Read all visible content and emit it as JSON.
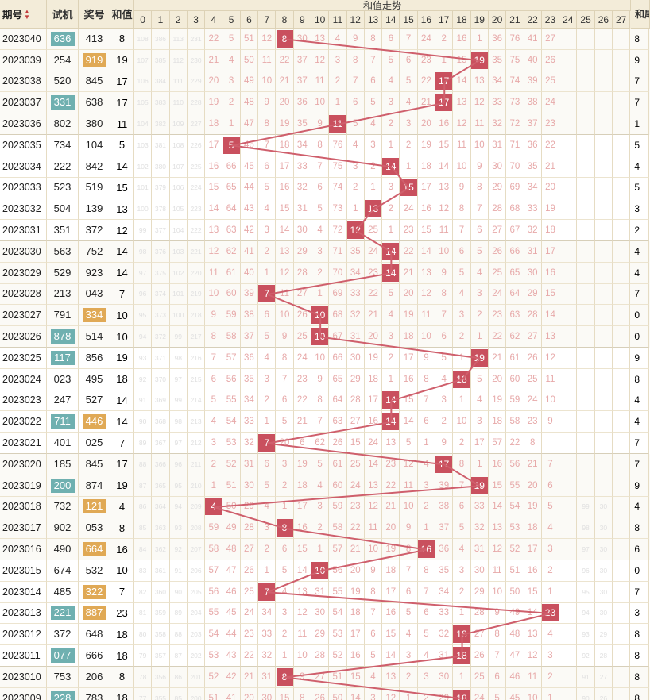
{
  "header": {
    "period": "期号",
    "trial": "试机",
    "prize": "奖号",
    "sum": "和值",
    "trend": "和值走势",
    "tail": "和尾",
    "numbers": [
      "0",
      "1",
      "2",
      "3",
      "4",
      "5",
      "6",
      "7",
      "8",
      "9",
      "10",
      "11",
      "12",
      "13",
      "14",
      "15",
      "16",
      "17",
      "18",
      "19",
      "20",
      "21",
      "22",
      "23",
      "24",
      "25",
      "26",
      "27"
    ]
  },
  "colors": {
    "hit": "#c9505e",
    "line": "#cf5f6c",
    "teal": "#6fb0b0",
    "amber": "#e0a955",
    "header_bg": "#f3ecd9"
  },
  "rows": [
    {
      "period": "2023040",
      "trial": "636",
      "trial_style": "teal",
      "prize": "413",
      "prize_style": "",
      "sum": "8",
      "tail": "8",
      "miss": [
        "108",
        "386",
        "113",
        "231",
        "22",
        "5",
        "51",
        "12",
        "",
        "30",
        "13",
        "4",
        "9",
        "8",
        "6",
        "7",
        "24",
        "2",
        "16",
        "1",
        "36",
        "76",
        "41",
        "27",
        "",
        "",
        "",
        ""
      ]
    },
    {
      "period": "2023039",
      "trial": "254",
      "trial_style": "",
      "prize": "919",
      "prize_style": "amber",
      "sum": "19",
      "tail": "9",
      "miss": [
        "107",
        "385",
        "112",
        "230",
        "21",
        "4",
        "50",
        "11",
        "22",
        "37",
        "12",
        "3",
        "8",
        "7",
        "5",
        "6",
        "23",
        "1",
        "15",
        "",
        "35",
        "75",
        "40",
        "26",
        "",
        "",
        "",
        ""
      ]
    },
    {
      "period": "2023038",
      "trial": "520",
      "trial_style": "",
      "prize": "845",
      "prize_style": "",
      "sum": "17",
      "tail": "7",
      "miss": [
        "106",
        "384",
        "111",
        "229",
        "20",
        "3",
        "49",
        "10",
        "21",
        "37",
        "11",
        "2",
        "7",
        "6",
        "4",
        "5",
        "22",
        "",
        "14",
        "13",
        "34",
        "74",
        "39",
        "25",
        "",
        "",
        "",
        ""
      ]
    },
    {
      "period": "2023037",
      "trial": "331",
      "trial_style": "teal",
      "prize": "638",
      "prize_style": "",
      "sum": "17",
      "tail": "7",
      "miss": [
        "105",
        "383",
        "110",
        "228",
        "19",
        "2",
        "48",
        "9",
        "20",
        "36",
        "10",
        "1",
        "6",
        "5",
        "3",
        "4",
        "21",
        "",
        "13",
        "12",
        "33",
        "73",
        "38",
        "24",
        "",
        "",
        "",
        ""
      ]
    },
    {
      "period": "2023036",
      "trial": "802",
      "trial_style": "",
      "prize": "380",
      "prize_style": "",
      "sum": "11",
      "tail": "1",
      "miss": [
        "104",
        "382",
        "109",
        "227",
        "18",
        "1",
        "47",
        "8",
        "19",
        "35",
        "9",
        "",
        "5",
        "4",
        "2",
        "3",
        "20",
        "16",
        "12",
        "11",
        "32",
        "72",
        "37",
        "23",
        "",
        "",
        "",
        ""
      ]
    },
    {
      "period": "2023035",
      "trial": "734",
      "trial_style": "",
      "prize": "104",
      "prize_style": "",
      "sum": "5",
      "tail": "5",
      "miss": [
        "103",
        "381",
        "108",
        "226",
        "17",
        "",
        "46",
        "7",
        "18",
        "34",
        "8",
        "76",
        "4",
        "3",
        "1",
        "2",
        "19",
        "15",
        "11",
        "10",
        "31",
        "71",
        "36",
        "22",
        "",
        "",
        "",
        ""
      ]
    },
    {
      "period": "2023034",
      "trial": "222",
      "trial_style": "",
      "prize": "842",
      "prize_style": "",
      "sum": "14",
      "tail": "4",
      "miss": [
        "102",
        "380",
        "107",
        "225",
        "16",
        "66",
        "45",
        "6",
        "17",
        "33",
        "7",
        "75",
        "3",
        "2",
        "",
        "1",
        "18",
        "14",
        "10",
        "9",
        "30",
        "70",
        "35",
        "21",
        "",
        "",
        "",
        ""
      ]
    },
    {
      "period": "2023033",
      "trial": "523",
      "trial_style": "",
      "prize": "519",
      "prize_style": "",
      "sum": "15",
      "tail": "5",
      "miss": [
        "101",
        "379",
        "106",
        "224",
        "15",
        "65",
        "44",
        "5",
        "16",
        "32",
        "6",
        "74",
        "2",
        "1",
        "3",
        "",
        "17",
        "13",
        "9",
        "8",
        "29",
        "69",
        "34",
        "20",
        "",
        "",
        "",
        ""
      ]
    },
    {
      "period": "2023032",
      "trial": "504",
      "trial_style": "",
      "prize": "139",
      "prize_style": "",
      "sum": "13",
      "tail": "3",
      "miss": [
        "100",
        "378",
        "105",
        "223",
        "14",
        "64",
        "43",
        "4",
        "15",
        "31",
        "5",
        "73",
        "1",
        "",
        "2",
        "24",
        "16",
        "12",
        "8",
        "7",
        "28",
        "68",
        "33",
        "19",
        "",
        "",
        "",
        ""
      ]
    },
    {
      "period": "2023031",
      "trial": "351",
      "trial_style": "",
      "prize": "372",
      "prize_style": "",
      "sum": "12",
      "tail": "2",
      "miss": [
        "99",
        "377",
        "104",
        "222",
        "13",
        "63",
        "42",
        "3",
        "14",
        "30",
        "4",
        "72",
        "",
        "25",
        "1",
        "23",
        "15",
        "11",
        "7",
        "6",
        "27",
        "67",
        "32",
        "18",
        "",
        "",
        "",
        ""
      ]
    },
    {
      "period": "2023030",
      "trial": "563",
      "trial_style": "",
      "prize": "752",
      "prize_style": "",
      "sum": "14",
      "tail": "4",
      "miss": [
        "98",
        "376",
        "103",
        "221",
        "12",
        "62",
        "41",
        "2",
        "13",
        "29",
        "3",
        "71",
        "35",
        "24",
        "",
        "22",
        "14",
        "10",
        "6",
        "5",
        "26",
        "66",
        "31",
        "17",
        "",
        "",
        "",
        ""
      ]
    },
    {
      "period": "2023029",
      "trial": "529",
      "trial_style": "",
      "prize": "923",
      "prize_style": "",
      "sum": "14",
      "tail": "4",
      "miss": [
        "97",
        "375",
        "102",
        "220",
        "11",
        "61",
        "40",
        "1",
        "12",
        "28",
        "2",
        "70",
        "34",
        "23",
        "",
        "21",
        "13",
        "9",
        "5",
        "4",
        "25",
        "65",
        "30",
        "16",
        "",
        "",
        "",
        ""
      ]
    },
    {
      "period": "2023028",
      "trial": "213",
      "trial_style": "",
      "prize": "043",
      "prize_style": "",
      "sum": "7",
      "tail": "7",
      "miss": [
        "96",
        "374",
        "101",
        "219",
        "10",
        "60",
        "39",
        "",
        "11",
        "27",
        "1",
        "69",
        "33",
        "22",
        "5",
        "20",
        "12",
        "8",
        "4",
        "3",
        "24",
        "64",
        "29",
        "15",
        "",
        "",
        "",
        ""
      ]
    },
    {
      "period": "2023027",
      "trial": "791",
      "trial_style": "",
      "prize": "334",
      "prize_style": "amber",
      "sum": "10",
      "tail": "0",
      "miss": [
        "95",
        "373",
        "100",
        "218",
        "9",
        "59",
        "38",
        "6",
        "10",
        "26",
        "",
        "68",
        "32",
        "21",
        "4",
        "19",
        "11",
        "7",
        "3",
        "2",
        "23",
        "63",
        "28",
        "14",
        "",
        "",
        "",
        ""
      ]
    },
    {
      "period": "2023026",
      "trial": "878",
      "trial_style": "teal",
      "prize": "514",
      "prize_style": "",
      "sum": "10",
      "tail": "0",
      "miss": [
        "94",
        "372",
        "99",
        "217",
        "8",
        "58",
        "37",
        "5",
        "9",
        "25",
        "",
        "67",
        "31",
        "20",
        "3",
        "18",
        "10",
        "6",
        "2",
        "1",
        "22",
        "62",
        "27",
        "13",
        "",
        "",
        "",
        ""
      ]
    },
    {
      "period": "2023025",
      "trial": "117",
      "trial_style": "teal",
      "prize": "856",
      "prize_style": "",
      "sum": "19",
      "tail": "9",
      "miss": [
        "93",
        "371",
        "98",
        "216",
        "7",
        "57",
        "36",
        "4",
        "8",
        "24",
        "10",
        "66",
        "30",
        "19",
        "2",
        "17",
        "9",
        "5",
        "1",
        "",
        "21",
        "61",
        "26",
        "12",
        "",
        "",
        "",
        ""
      ]
    },
    {
      "period": "2023024",
      "trial": "023",
      "trial_style": "",
      "prize": "495",
      "prize_style": "",
      "sum": "18",
      "tail": "8",
      "miss": [
        "92",
        "370",
        "97",
        "215",
        "6",
        "56",
        "35",
        "3",
        "7",
        "23",
        "9",
        "65",
        "29",
        "18",
        "1",
        "16",
        "8",
        "4",
        "",
        "5",
        "20",
        "60",
        "25",
        "11",
        "",
        "",
        "",
        ""
      ]
    },
    {
      "period": "2023023",
      "trial": "247",
      "trial_style": "",
      "prize": "527",
      "prize_style": "",
      "sum": "14",
      "tail": "4",
      "miss": [
        "91",
        "369",
        "99",
        "214",
        "5",
        "55",
        "34",
        "2",
        "6",
        "22",
        "8",
        "64",
        "28",
        "17",
        "",
        "15",
        "7",
        "3",
        "1",
        "4",
        "19",
        "59",
        "24",
        "10",
        "",
        "",
        "",
        ""
      ]
    },
    {
      "period": "2023022",
      "trial": "711",
      "trial_style": "teal",
      "prize": "446",
      "prize_style": "amber",
      "sum": "14",
      "tail": "4",
      "miss": [
        "90",
        "368",
        "98",
        "213",
        "4",
        "54",
        "33",
        "1",
        "5",
        "21",
        "7",
        "63",
        "27",
        "16",
        "",
        "14",
        "6",
        "2",
        "10",
        "3",
        "18",
        "58",
        "23",
        "9",
        "",
        "",
        "",
        ""
      ]
    },
    {
      "period": "2023021",
      "trial": "401",
      "trial_style": "",
      "prize": "025",
      "prize_style": "",
      "sum": "7",
      "tail": "7",
      "miss": [
        "89",
        "367",
        "97",
        "212",
        "3",
        "53",
        "32",
        "",
        "20",
        "6",
        "62",
        "26",
        "15",
        "24",
        "13",
        "5",
        "1",
        "9",
        "2",
        "17",
        "57",
        "22",
        "8",
        "",
        "",
        "",
        "",
        ""
      ]
    },
    {
      "period": "2023020",
      "trial": "185",
      "trial_style": "",
      "prize": "845",
      "prize_style": "",
      "sum": "17",
      "tail": "7",
      "miss": [
        "88",
        "366",
        "96",
        "211",
        "2",
        "52",
        "31",
        "6",
        "3",
        "19",
        "5",
        "61",
        "25",
        "14",
        "23",
        "12",
        "4",
        "",
        "8",
        "1",
        "16",
        "56",
        "21",
        "7",
        "",
        "",
        "",
        ""
      ]
    },
    {
      "period": "2023019",
      "trial": "200",
      "trial_style": "teal",
      "prize": "874",
      "prize_style": "",
      "sum": "19",
      "tail": "9",
      "miss": [
        "87",
        "365",
        "95",
        "210",
        "1",
        "51",
        "30",
        "5",
        "2",
        "18",
        "4",
        "60",
        "24",
        "13",
        "22",
        "11",
        "3",
        "39",
        "7",
        "",
        "15",
        "55",
        "20",
        "6",
        "",
        "",
        "",
        ""
      ]
    },
    {
      "period": "2023018",
      "trial": "732",
      "trial_style": "",
      "prize": "121",
      "prize_style": "amber",
      "sum": "4",
      "tail": "4",
      "miss": [
        "86",
        "364",
        "94",
        "209",
        "",
        "50",
        "29",
        "4",
        "1",
        "17",
        "3",
        "59",
        "23",
        "12",
        "21",
        "10",
        "2",
        "38",
        "6",
        "33",
        "14",
        "54",
        "19",
        "5",
        "",
        "99",
        "30",
        ""
      ]
    },
    {
      "period": "2023017",
      "trial": "902",
      "trial_style": "",
      "prize": "053",
      "prize_style": "",
      "sum": "8",
      "tail": "8",
      "miss": [
        "85",
        "363",
        "93",
        "208",
        "59",
        "49",
        "28",
        "3",
        "",
        "16",
        "2",
        "58",
        "22",
        "11",
        "20",
        "9",
        "1",
        "37",
        "5",
        "32",
        "13",
        "53",
        "18",
        "4",
        "",
        "98",
        "30",
        ""
      ]
    },
    {
      "period": "2023016",
      "trial": "490",
      "trial_style": "",
      "prize": "664",
      "prize_style": "amber",
      "sum": "16",
      "tail": "6",
      "miss": [
        "84",
        "362",
        "92",
        "207",
        "58",
        "48",
        "27",
        "2",
        "6",
        "15",
        "1",
        "57",
        "21",
        "10",
        "19",
        "8",
        "",
        "36",
        "4",
        "31",
        "12",
        "52",
        "17",
        "3",
        "",
        "97",
        "30",
        ""
      ]
    },
    {
      "period": "2023015",
      "trial": "674",
      "trial_style": "",
      "prize": "532",
      "prize_style": "",
      "sum": "10",
      "tail": "0",
      "miss": [
        "83",
        "361",
        "91",
        "206",
        "57",
        "47",
        "26",
        "1",
        "5",
        "14",
        "",
        "56",
        "20",
        "9",
        "18",
        "7",
        "8",
        "35",
        "3",
        "30",
        "11",
        "51",
        "16",
        "2",
        "",
        "96",
        "30",
        ""
      ]
    },
    {
      "period": "2023014",
      "trial": "485",
      "trial_style": "",
      "prize": "322",
      "prize_style": "amber",
      "sum": "7",
      "tail": "7",
      "miss": [
        "82",
        "360",
        "90",
        "205",
        "56",
        "46",
        "25",
        "",
        "4",
        "13",
        "31",
        "55",
        "19",
        "8",
        "17",
        "6",
        "7",
        "34",
        "2",
        "29",
        "10",
        "50",
        "15",
        "1",
        "",
        "95",
        "30",
        ""
      ]
    },
    {
      "period": "2023013",
      "trial": "221",
      "trial_style": "teal",
      "prize": "887",
      "prize_style": "amber",
      "sum": "23",
      "tail": "3",
      "miss": [
        "81",
        "359",
        "89",
        "204",
        "55",
        "45",
        "24",
        "34",
        "3",
        "12",
        "30",
        "54",
        "18",
        "7",
        "16",
        "5",
        "6",
        "33",
        "1",
        "28",
        "9",
        "49",
        "14",
        "",
        "",
        "94",
        "30",
        ""
      ]
    },
    {
      "period": "2023012",
      "trial": "372",
      "trial_style": "",
      "prize": "648",
      "prize_style": "",
      "sum": "18",
      "tail": "8",
      "miss": [
        "80",
        "358",
        "88",
        "203",
        "54",
        "44",
        "23",
        "33",
        "2",
        "11",
        "29",
        "53",
        "17",
        "6",
        "15",
        "4",
        "5",
        "32",
        "",
        "27",
        "8",
        "48",
        "13",
        "4",
        "",
        "93",
        "29",
        ""
      ]
    },
    {
      "period": "2023011",
      "trial": "077",
      "trial_style": "teal",
      "prize": "666",
      "prize_style": "",
      "sum": "18",
      "tail": "8",
      "miss": [
        "79",
        "357",
        "87",
        "202",
        "53",
        "43",
        "22",
        "32",
        "1",
        "10",
        "28",
        "52",
        "16",
        "5",
        "14",
        "3",
        "4",
        "31",
        "",
        "26",
        "7",
        "47",
        "12",
        "3",
        "",
        "92",
        "28",
        ""
      ]
    },
    {
      "period": "2023010",
      "trial": "753",
      "trial_style": "",
      "prize": "206",
      "prize_style": "",
      "sum": "8",
      "tail": "8",
      "miss": [
        "78",
        "356",
        "86",
        "201",
        "52",
        "42",
        "21",
        "31",
        "",
        "9",
        "27",
        "51",
        "15",
        "4",
        "13",
        "2",
        "3",
        "30",
        "1",
        "25",
        "6",
        "46",
        "11",
        "2",
        "",
        "91",
        "27",
        ""
      ]
    },
    {
      "period": "2023009",
      "trial": "228",
      "trial_style": "teal",
      "prize": "783",
      "prize_style": "",
      "sum": "18",
      "tail": "8",
      "miss": [
        "77",
        "355",
        "85",
        "200",
        "51",
        "41",
        "20",
        "30",
        "15",
        "8",
        "26",
        "50",
        "14",
        "3",
        "12",
        "1",
        "2",
        "29",
        "",
        "24",
        "5",
        "45",
        "10",
        "1",
        "",
        "90",
        "26",
        ""
      ]
    }
  ]
}
